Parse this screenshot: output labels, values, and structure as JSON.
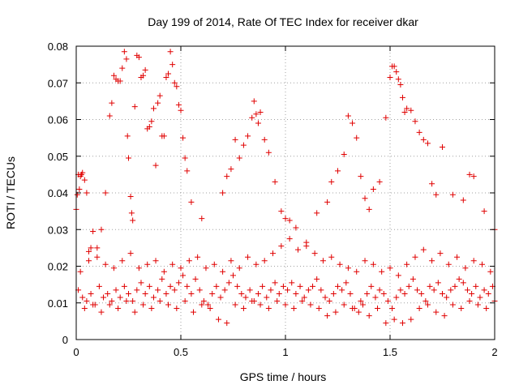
{
  "chart_data": {
    "type": "scatter",
    "title": "Day 199 of 2014, Rate Of TEC Index for receiver dkar",
    "xlabel": "GPS time / hours",
    "ylabel": "ROTI / TECUs",
    "xlim": [
      0,
      2
    ],
    "ylim": [
      0,
      0.08
    ],
    "xticks": [
      0,
      0.5,
      1,
      1.5,
      2
    ],
    "xtick_labels": [
      "0",
      "0.5",
      "1",
      "1.5",
      "2"
    ],
    "yticks": [
      0,
      0.01,
      0.02,
      0.03,
      0.04,
      0.05,
      0.06,
      0.07,
      0.08
    ],
    "ytick_labels": [
      "0",
      "0.01",
      "0.02",
      "0.03",
      "0.04",
      "0.05",
      "0.06",
      "0.07",
      "0.08"
    ],
    "grid": true,
    "marker": "+",
    "marker_color": "#e00000",
    "series": [
      {
        "name": "ROTI",
        "x": [
          0.0,
          0.005,
          0.01,
          0.015,
          0.02,
          0.025,
          0.03,
          0.04,
          0.05,
          0.06,
          0.07,
          0.08,
          0.1,
          0.12,
          0.14,
          0.16,
          0.17,
          0.18,
          0.19,
          0.2,
          0.21,
          0.22,
          0.23,
          0.24,
          0.245,
          0.25,
          0.26,
          0.265,
          0.27,
          0.28,
          0.29,
          0.3,
          0.31,
          0.32,
          0.33,
          0.34,
          0.35,
          0.36,
          0.37,
          0.38,
          0.39,
          0.4,
          0.41,
          0.42,
          0.43,
          0.44,
          0.45,
          0.46,
          0.47,
          0.48,
          0.49,
          0.5,
          0.51,
          0.52,
          0.53,
          0.55,
          0.6,
          0.7,
          0.72,
          0.74,
          0.76,
          0.78,
          0.8,
          0.82,
          0.84,
          0.85,
          0.86,
          0.87,
          0.88,
          0.9,
          0.92,
          0.95,
          0.98,
          1.0,
          1.02,
          1.05,
          1.1,
          1.15,
          1.2,
          1.22,
          1.25,
          1.28,
          1.3,
          1.32,
          1.34,
          1.36,
          1.38,
          1.4,
          1.42,
          1.45,
          1.48,
          1.5,
          1.51,
          1.52,
          1.53,
          1.54,
          1.55,
          1.56,
          1.57,
          1.58,
          1.6,
          1.62,
          1.64,
          1.66,
          1.68,
          1.7,
          1.72,
          1.75,
          1.8,
          1.85,
          1.88,
          1.9,
          1.95,
          2.0,
          0.01,
          0.03,
          0.05,
          0.07,
          0.09,
          0.11,
          0.13,
          0.15,
          0.17,
          0.19,
          0.21,
          0.23,
          0.25,
          0.27,
          0.29,
          0.31,
          0.33,
          0.35,
          0.37,
          0.39,
          0.41,
          0.43,
          0.45,
          0.47,
          0.49,
          0.51,
          0.53,
          0.55,
          0.57,
          0.59,
          0.61,
          0.63,
          0.65,
          0.67,
          0.69,
          0.71,
          0.73,
          0.75,
          0.77,
          0.79,
          0.81,
          0.83,
          0.85,
          0.87,
          0.89,
          0.91,
          0.93,
          0.95,
          0.97,
          0.99,
          1.01,
          1.03,
          1.05,
          1.07,
          1.09,
          1.11,
          1.13,
          1.15,
          1.17,
          1.19,
          1.21,
          1.23,
          1.25,
          1.27,
          1.29,
          1.31,
          1.33,
          1.35,
          1.37,
          1.39,
          1.41,
          1.43,
          1.45,
          1.47,
          1.49,
          1.51,
          1.53,
          1.55,
          1.57,
          1.59,
          1.61,
          1.63,
          1.65,
          1.67,
          1.69,
          1.71,
          1.73,
          1.75,
          1.77,
          1.79,
          1.81,
          1.83,
          1.85,
          1.87,
          1.89,
          1.91,
          1.93,
          1.95,
          1.97,
          1.99,
          0.02,
          0.06,
          0.1,
          0.14,
          0.18,
          0.22,
          0.26,
          0.3,
          0.34,
          0.38,
          0.42,
          0.46,
          0.5,
          0.54,
          0.58,
          0.62,
          0.66,
          0.7,
          0.74,
          0.78,
          0.82,
          0.86,
          0.9,
          0.94,
          0.98,
          1.02,
          1.06,
          1.1,
          1.14,
          1.18,
          1.22,
          1.26,
          1.3,
          1.34,
          1.38,
          1.42,
          1.46,
          1.5,
          1.54,
          1.58,
          1.62,
          1.66,
          1.7,
          1.74,
          1.78,
          1.82,
          1.86,
          1.9,
          1.94,
          1.98,
          0.04,
          0.08,
          0.12,
          0.16,
          0.2,
          0.24,
          0.28,
          0.32,
          0.36,
          0.4,
          0.44,
          0.48,
          0.52,
          0.56,
          0.6,
          0.64,
          0.68,
          0.72,
          0.76,
          0.8,
          0.84,
          0.88,
          0.92,
          0.96,
          1.0,
          1.04,
          1.08,
          1.12,
          1.16,
          1.2,
          1.24,
          1.28,
          1.32,
          1.36,
          1.4,
          1.44,
          1.48,
          1.52,
          1.56,
          1.6,
          1.64,
          1.68,
          1.72,
          1.76,
          1.8,
          1.84,
          1.88,
          1.92,
          1.96,
          2.0
        ],
        "y": [
          0.0355,
          0.0395,
          0.045,
          0.041,
          0.0445,
          0.045,
          0.0455,
          0.0435,
          0.04,
          0.024,
          0.025,
          0.0295,
          0.025,
          0.03,
          0.04,
          0.061,
          0.0645,
          0.072,
          0.071,
          0.0705,
          0.0705,
          0.074,
          0.0785,
          0.0765,
          0.0555,
          0.0495,
          0.039,
          0.0345,
          0.0325,
          0.0635,
          0.0775,
          0.077,
          0.0715,
          0.072,
          0.0735,
          0.0575,
          0.058,
          0.0595,
          0.063,
          0.0475,
          0.0645,
          0.0665,
          0.0555,
          0.0555,
          0.0715,
          0.0725,
          0.0785,
          0.075,
          0.07,
          0.069,
          0.064,
          0.0625,
          0.055,
          0.0495,
          0.046,
          0.0375,
          0.033,
          0.04,
          0.0445,
          0.0465,
          0.0545,
          0.0495,
          0.053,
          0.0555,
          0.0605,
          0.065,
          0.0615,
          0.059,
          0.062,
          0.0545,
          0.051,
          0.043,
          0.035,
          0.033,
          0.0325,
          0.0305,
          0.0255,
          0.0345,
          0.0375,
          0.043,
          0.046,
          0.0505,
          0.061,
          0.059,
          0.055,
          0.0445,
          0.0385,
          0.0355,
          0.041,
          0.043,
          0.0605,
          0.0715,
          0.0745,
          0.0745,
          0.073,
          0.071,
          0.0695,
          0.066,
          0.062,
          0.063,
          0.0625,
          0.0595,
          0.0565,
          0.0545,
          0.0535,
          0.0425,
          0.0395,
          0.0525,
          0.0395,
          0.038,
          0.045,
          0.0445,
          0.035,
          0.03,
          0.0135,
          0.0115,
          0.0105,
          0.0125,
          0.0095,
          0.0145,
          0.0115,
          0.0125,
          0.0105,
          0.0135,
          0.0115,
          0.0145,
          0.0125,
          0.0105,
          0.0135,
          0.0155,
          0.0125,
          0.0145,
          0.0115,
          0.0135,
          0.0165,
          0.0125,
          0.0145,
          0.0135,
          0.0155,
          0.0175,
          0.0145,
          0.0125,
          0.0165,
          0.0135,
          0.0105,
          0.0095,
          0.0125,
          0.0145,
          0.0115,
          0.0135,
          0.0155,
          0.0175,
          0.0145,
          0.0125,
          0.0115,
          0.0135,
          0.0105,
          0.0125,
          0.0145,
          0.0115,
          0.0135,
          0.0155,
          0.0125,
          0.0145,
          0.0135,
          0.0155,
          0.0125,
          0.0145,
          0.0115,
          0.0135,
          0.0145,
          0.0165,
          0.0135,
          0.0115,
          0.0105,
          0.0125,
          0.0145,
          0.0135,
          0.0155,
          0.0125,
          0.0085,
          0.0075,
          0.0095,
          0.0125,
          0.0145,
          0.0115,
          0.0135,
          0.0125,
          0.0105,
          0.0085,
          0.0115,
          0.0135,
          0.0125,
          0.0145,
          0.0165,
          0.0135,
          0.0125,
          0.0105,
          0.0145,
          0.0135,
          0.0155,
          0.0125,
          0.0115,
          0.0135,
          0.0145,
          0.0165,
          0.0155,
          0.0135,
          0.0125,
          0.0145,
          0.0115,
          0.0135,
          0.0125,
          0.0145,
          0.0185,
          0.0215,
          0.0225,
          0.0205,
          0.0195,
          0.0215,
          0.0235,
          0.0195,
          0.0205,
          0.0215,
          0.0185,
          0.0205,
          0.0195,
          0.0215,
          0.0225,
          0.0195,
          0.0205,
          0.0185,
          0.0215,
          0.0195,
          0.0225,
          0.0205,
          0.0215,
          0.0235,
          0.0255,
          0.0275,
          0.0245,
          0.0265,
          0.0235,
          0.0215,
          0.0225,
          0.0205,
          0.0195,
          0.0185,
          0.0215,
          0.0205,
          0.0185,
          0.0195,
          0.0175,
          0.0205,
          0.0225,
          0.0245,
          0.0215,
          0.0235,
          0.0205,
          0.0225,
          0.0195,
          0.0215,
          0.0205,
          0.0185,
          0.0085,
          0.0095,
          0.0075,
          0.0095,
          0.0085,
          0.0105,
          0.0075,
          0.0095,
          0.0085,
          0.0105,
          0.0095,
          0.0085,
          0.0105,
          0.0075,
          0.0095,
          0.0085,
          0.0055,
          0.0045,
          0.0095,
          0.0085,
          0.0105,
          0.0095,
          0.0085,
          0.0105,
          0.0095,
          0.0085,
          0.0105,
          0.0095,
          0.0085,
          0.0065,
          0.0075,
          0.0095,
          0.0085,
          0.0105,
          0.0065,
          0.0085,
          0.0045,
          0.0055,
          0.0045,
          0.0055,
          0.0085,
          0.0095,
          0.0075,
          0.0065,
          0.0095,
          0.0085,
          0.0105,
          0.0095,
          0.0085,
          0.0105
        ]
      }
    ]
  }
}
